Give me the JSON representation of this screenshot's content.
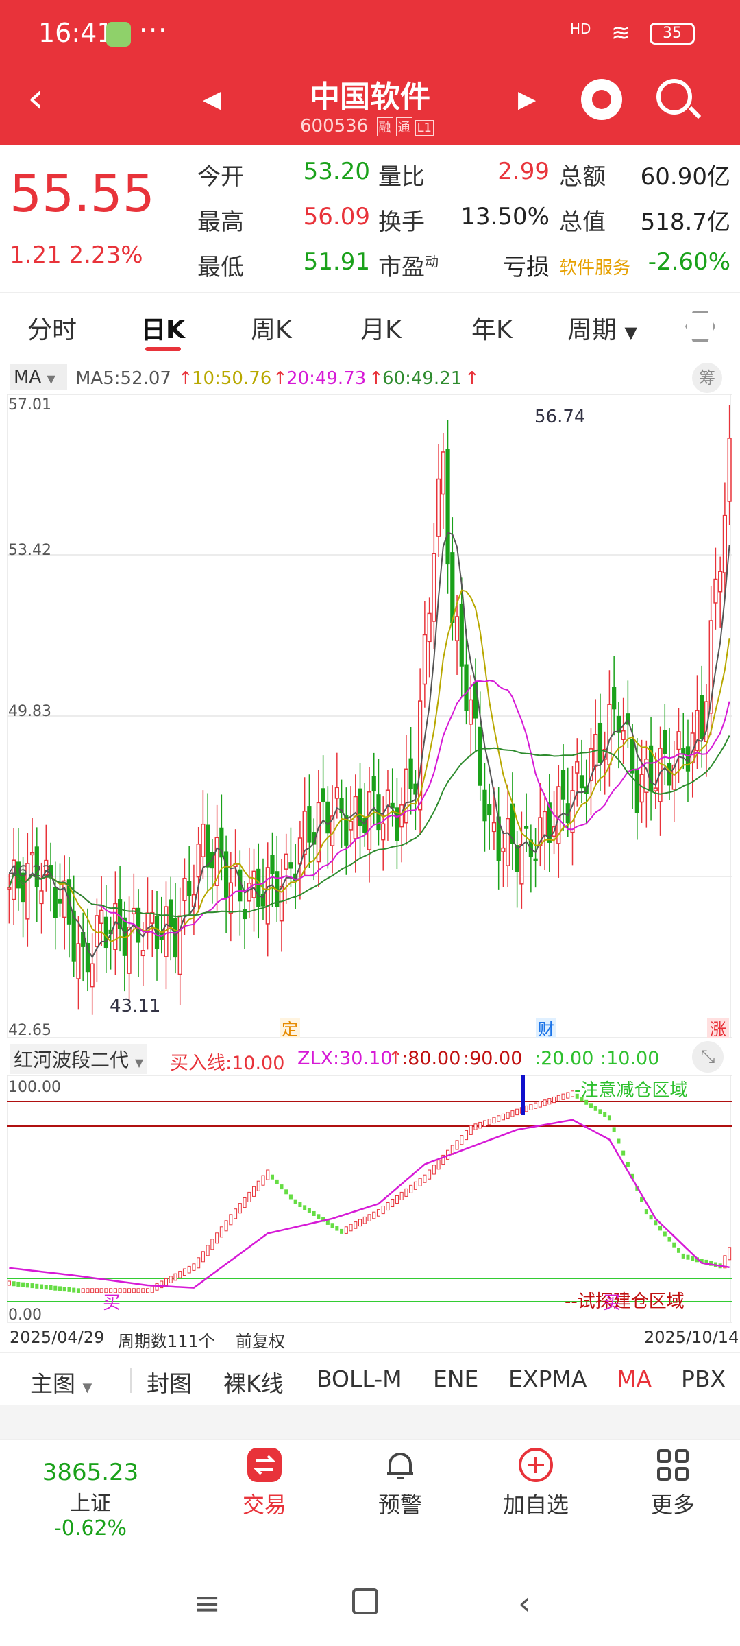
{
  "status_bar": {
    "time": "16:41",
    "battery": "35",
    "hd": "HD"
  },
  "header": {
    "title": "中国软件",
    "code": "600536",
    "tag1": "融",
    "tag2": "通",
    "tag3": "L1"
  },
  "quote": {
    "price": "55.55",
    "change": "1.21",
    "change_pct": "2.23%",
    "rows": [
      {
        "l1": "今开",
        "v1": "53.20",
        "l2": "量比",
        "v2": "2.99",
        "l3": "总额",
        "v3": "60.90亿"
      },
      {
        "l1": "最高",
        "v1": "56.09",
        "l2": "换手",
        "v2": "13.50%",
        "l3": "总值",
        "v3": "518.7亿"
      },
      {
        "l1": "最低",
        "v1": "51.91",
        "l2": "市盈",
        "l2_sup": "动",
        "v2": "亏损",
        "l3": "软件服务",
        "v3": "-2.60%"
      }
    ]
  },
  "tabs": [
    "分时",
    "日K",
    "周K",
    "月K",
    "年K",
    "周期"
  ],
  "active_tab": "日K",
  "ma_legend": {
    "selector": "MA",
    "ma5": "MA5:52.07",
    "ma10": "10:50.76",
    "ma20": "20:49.73",
    "ma60": "60:49.21",
    "chou": "筹"
  },
  "main_chart_labels": {
    "y_top": "57.01",
    "y2": "53.42",
    "y3": "49.83",
    "y4": "46.23",
    "y_bottom": "42.65",
    "high_label": "56.74",
    "low_label": "43.11",
    "mark_ding": "定",
    "mark_cai": "财",
    "mark_zhang": "涨"
  },
  "indicator": {
    "name": "红河波段二代",
    "buy_line": "买入线:10.00",
    "zlx": "ZLX:30.10",
    "v80": ":80.00",
    "v90": ":90.00",
    "v20": ":20.00",
    "v10": ":10.00",
    "y_top": "100.00",
    "y_bottom": "0.00",
    "top_zone": "-注意减仓区域",
    "bottom_zone": "--试探建仓区域",
    "buy1": "买",
    "buy2": "买"
  },
  "footer": {
    "start_date": "2025/04/29",
    "periods": "周期数111个",
    "adjust": "前复权",
    "end_date": "2025/10/14"
  },
  "sub_tabs": [
    "主图",
    "封图",
    "裸K线",
    "BOLL-M",
    "ENE",
    "EXPMA",
    "MA",
    "PBX"
  ],
  "nav": {
    "index_value": "3865.23",
    "index_name": "上证",
    "index_change": "-0.62%",
    "trade": "交易",
    "alert": "预警",
    "add": "加自选",
    "more": "更多"
  },
  "colors": {
    "brand": "#e8333a",
    "up": "#e8333a",
    "down": "#1aa11a",
    "ma5": "#555555",
    "ma10": "#b8a800",
    "ma20": "#d61ad6",
    "ma60": "#2e8b2e"
  },
  "chart_data": {
    "type": "candlestick",
    "ylim": [
      42.65,
      57.01
    ],
    "high": 56.74,
    "low": 43.11,
    "last_close": 55.55
  }
}
